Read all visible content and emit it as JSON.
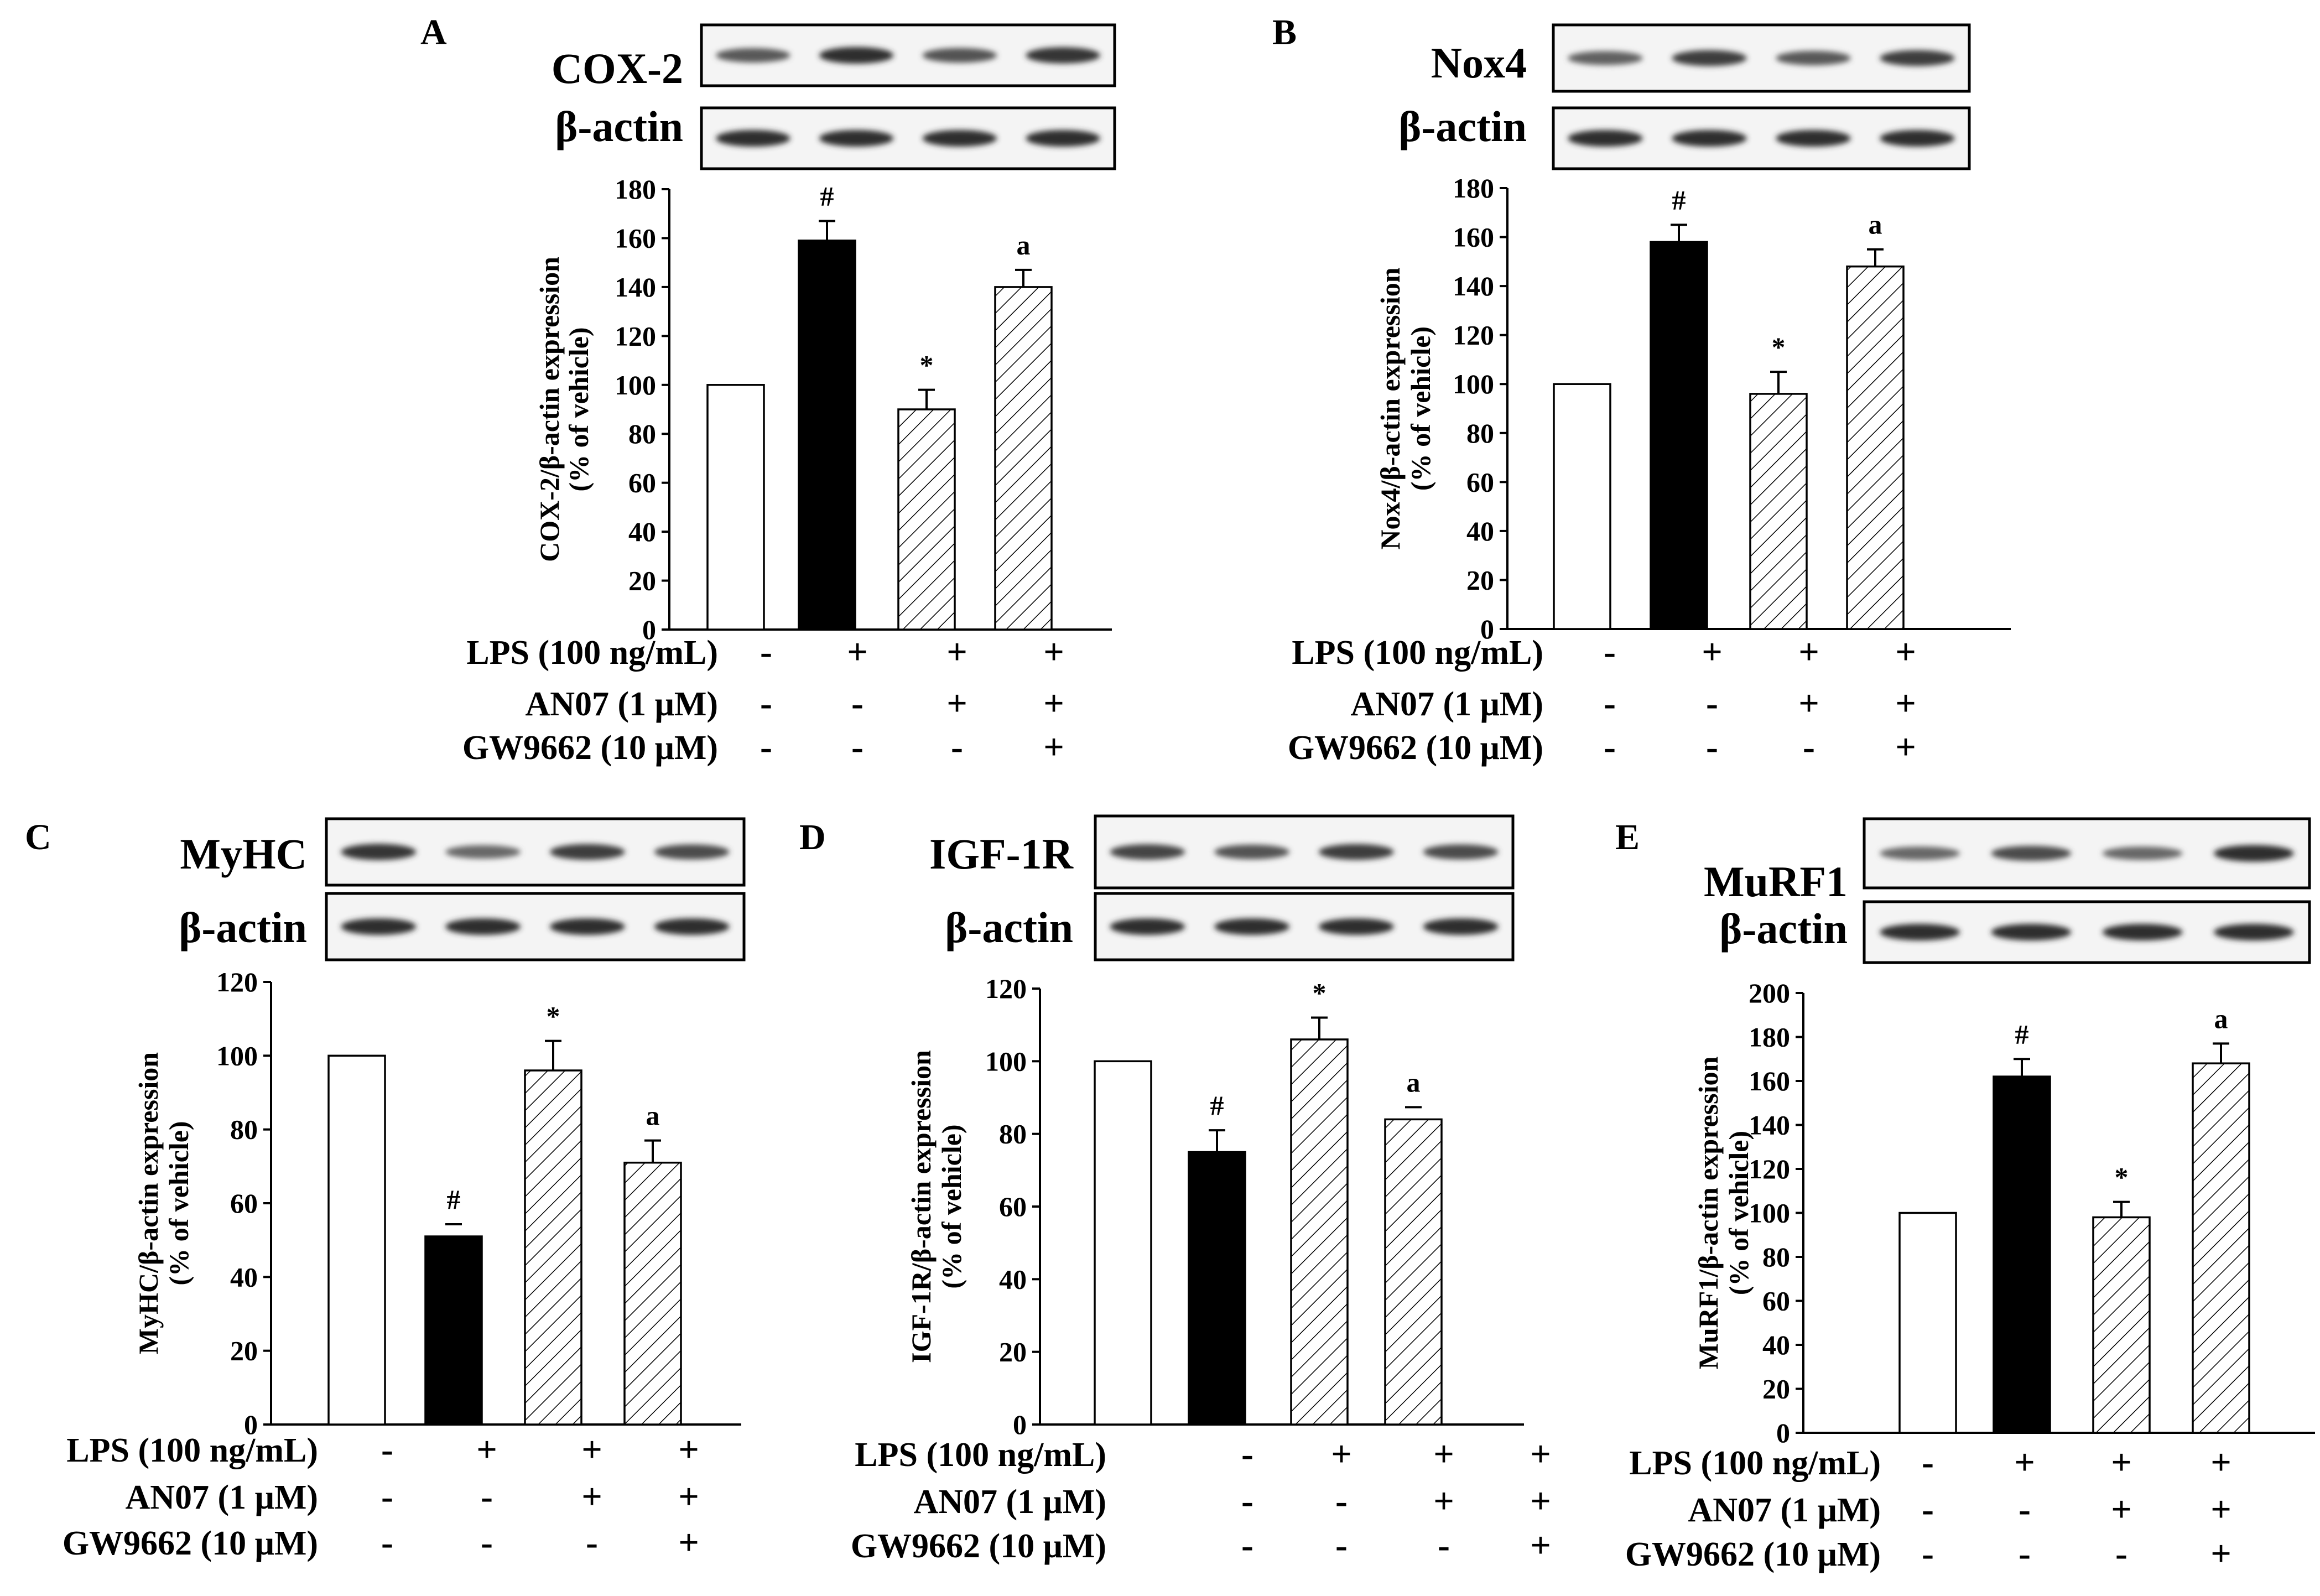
{
  "chart_data": [
    {
      "panel": "A",
      "type": "bar",
      "protein": "COX-2",
      "loading_control": "β-actin",
      "ylabel": [
        "COX-2/β-actin expression",
        "(% of vehicle)"
      ],
      "ylim": [
        0,
        180
      ],
      "yticks": [
        0,
        20,
        40,
        60,
        80,
        100,
        120,
        140,
        160,
        180
      ],
      "values": [
        100,
        159,
        90,
        140
      ],
      "errors": [
        0,
        8,
        8,
        7
      ],
      "annotations": [
        "",
        "#",
        "*",
        "a"
      ],
      "band_intensity": [
        0.65,
        0.95,
        0.7,
        0.9
      ],
      "conditions": [
        {
          "label": "LPS (100 ng/mL)",
          "signs": [
            "-",
            "+",
            "+",
            "+"
          ]
        },
        {
          "label": "AN07 (1 μM)",
          "signs": [
            "-",
            "-",
            "+",
            "+"
          ]
        },
        {
          "label": "GW9662 (10 μM)",
          "signs": [
            "-",
            "-",
            "-",
            "+"
          ]
        }
      ]
    },
    {
      "panel": "B",
      "type": "bar",
      "protein": "Nox4",
      "loading_control": "β-actin",
      "ylabel": [
        "Nox4/β-actin expression",
        "(% of vehicle)"
      ],
      "ylim": [
        0,
        180
      ],
      "yticks": [
        0,
        20,
        40,
        60,
        80,
        100,
        120,
        140,
        160,
        180
      ],
      "values": [
        100,
        158,
        96,
        148
      ],
      "errors": [
        0,
        7,
        9,
        7
      ],
      "annotations": [
        "",
        "#",
        "*",
        "a"
      ],
      "band_intensity": [
        0.6,
        0.85,
        0.65,
        0.85
      ],
      "conditions": [
        {
          "label": "LPS (100 ng/mL)",
          "signs": [
            "-",
            "+",
            "+",
            "+"
          ]
        },
        {
          "label": "AN07 (1 μM)",
          "signs": [
            "-",
            "-",
            "+",
            "+"
          ]
        },
        {
          "label": "GW9662 (10 μM)",
          "signs": [
            "-",
            "-",
            "-",
            "+"
          ]
        }
      ]
    },
    {
      "panel": "C",
      "type": "bar",
      "protein": "MyHC",
      "loading_control": "β-actin",
      "ylabel": [
        "MyHC/β-actin expression",
        "(% of vehicle)"
      ],
      "ylim": [
        0,
        120
      ],
      "yticks": [
        0,
        20,
        40,
        60,
        80,
        100,
        120
      ],
      "values": [
        100,
        51,
        96,
        71
      ],
      "errors": [
        0,
        0,
        8,
        6
      ],
      "annotations": [
        "",
        "#",
        "*",
        "a"
      ],
      "band_intensity": [
        0.9,
        0.55,
        0.85,
        0.75
      ],
      "conditions": [
        {
          "label": "LPS (100 ng/mL)",
          "signs": [
            "-",
            "+",
            "+",
            "+"
          ]
        },
        {
          "label": "AN07 (1 μM)",
          "signs": [
            "-",
            "-",
            "+",
            "+"
          ]
        },
        {
          "label": "GW9662 (10 μM)",
          "signs": [
            "-",
            "-",
            "-",
            "+"
          ]
        }
      ]
    },
    {
      "panel": "D",
      "type": "bar",
      "protein": "IGF-1R",
      "loading_control": "β-actin",
      "ylabel": [
        "IGF-1R/β-actin expression",
        "(% of vehicle)"
      ],
      "ylim": [
        0,
        120
      ],
      "yticks": [
        0,
        20,
        40,
        60,
        80,
        100,
        120
      ],
      "values": [
        100,
        75,
        106,
        84
      ],
      "errors": [
        0,
        6,
        6,
        0
      ],
      "annotations": [
        "",
        "#",
        "*",
        "a"
      ],
      "band_intensity": [
        0.8,
        0.7,
        0.85,
        0.75
      ],
      "conditions": [
        {
          "label": "LPS (100 ng/mL)",
          "signs": [
            "-",
            "+",
            "+",
            "+"
          ]
        },
        {
          "label": "AN07 (1 μM)",
          "signs": [
            "-",
            "-",
            "+",
            "+"
          ]
        },
        {
          "label": "GW9662 (10 μM)",
          "signs": [
            "-",
            "-",
            "-",
            "+"
          ]
        }
      ]
    },
    {
      "panel": "E",
      "type": "bar",
      "protein": "MuRF1",
      "loading_control": "β-actin",
      "ylabel": [
        "MuRF1/β-actin expression",
        "(% of vehicle)"
      ],
      "ylim": [
        0,
        200
      ],
      "yticks": [
        0,
        20,
        40,
        60,
        80,
        100,
        120,
        140,
        160,
        180,
        200
      ],
      "values": [
        100,
        162,
        98,
        168
      ],
      "errors": [
        0,
        8,
        7,
        9
      ],
      "annotations": [
        "",
        "#",
        "*",
        "a"
      ],
      "band_intensity": [
        0.55,
        0.75,
        0.55,
        0.95
      ],
      "conditions": [
        {
          "label": "LPS (100 ng/mL)",
          "signs": [
            "-",
            "+",
            "+",
            "+"
          ]
        },
        {
          "label": "AN07 (1 μM)",
          "signs": [
            "-",
            "-",
            "+",
            "+"
          ]
        },
        {
          "label": "GW9662 (10 μM)",
          "signs": [
            "-",
            "-",
            "-",
            "+"
          ]
        }
      ]
    }
  ]
}
